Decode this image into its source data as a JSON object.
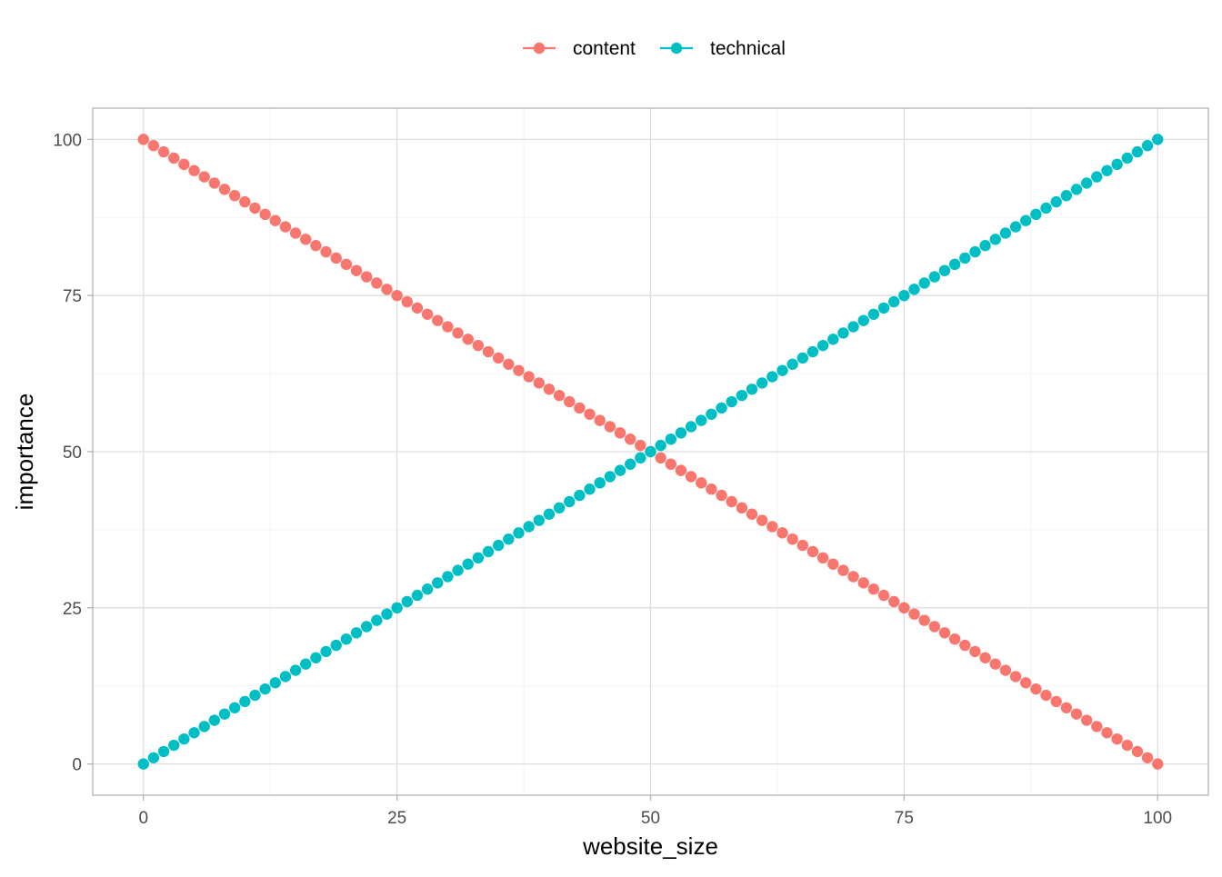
{
  "chart_data": {
    "type": "scatter",
    "title": "",
    "xlabel": "website_size",
    "ylabel": "importance",
    "xlim": [
      -5,
      105
    ],
    "ylim": [
      -5,
      105
    ],
    "x_ticks": [
      0,
      25,
      50,
      75,
      100
    ],
    "y_ticks": [
      0,
      25,
      50,
      75,
      100
    ],
    "x_tick_labels": [
      "0",
      "25",
      "50",
      "75",
      "100"
    ],
    "y_tick_labels": [
      "0",
      "25",
      "50",
      "75",
      "100"
    ],
    "grid": true,
    "legend_position": "top",
    "x": [
      0,
      1,
      2,
      3,
      4,
      5,
      6,
      7,
      8,
      9,
      10,
      11,
      12,
      13,
      14,
      15,
      16,
      17,
      18,
      19,
      20,
      21,
      22,
      23,
      24,
      25,
      26,
      27,
      28,
      29,
      30,
      31,
      32,
      33,
      34,
      35,
      36,
      37,
      38,
      39,
      40,
      41,
      42,
      43,
      44,
      45,
      46,
      47,
      48,
      49,
      50,
      51,
      52,
      53,
      54,
      55,
      56,
      57,
      58,
      59,
      60,
      61,
      62,
      63,
      64,
      65,
      66,
      67,
      68,
      69,
      70,
      71,
      72,
      73,
      74,
      75,
      76,
      77,
      78,
      79,
      80,
      81,
      82,
      83,
      84,
      85,
      86,
      87,
      88,
      89,
      90,
      91,
      92,
      93,
      94,
      95,
      96,
      97,
      98,
      99,
      100
    ],
    "series": [
      {
        "name": "content",
        "color": "#F8766D",
        "values": [
          100,
          99,
          98,
          97,
          96,
          95,
          94,
          93,
          92,
          91,
          90,
          89,
          88,
          87,
          86,
          85,
          84,
          83,
          82,
          81,
          80,
          79,
          78,
          77,
          76,
          75,
          74,
          73,
          72,
          71,
          70,
          69,
          68,
          67,
          66,
          65,
          64,
          63,
          62,
          61,
          60,
          59,
          58,
          57,
          56,
          55,
          54,
          53,
          52,
          51,
          50,
          49,
          48,
          47,
          46,
          45,
          44,
          43,
          42,
          41,
          40,
          39,
          38,
          37,
          36,
          35,
          34,
          33,
          32,
          31,
          30,
          29,
          28,
          27,
          26,
          25,
          24,
          23,
          22,
          21,
          20,
          19,
          18,
          17,
          16,
          15,
          14,
          13,
          12,
          11,
          10,
          9,
          8,
          7,
          6,
          5,
          4,
          3,
          2,
          1,
          0
        ]
      },
      {
        "name": "technical",
        "color": "#00BFC4",
        "values": [
          0,
          1,
          2,
          3,
          4,
          5,
          6,
          7,
          8,
          9,
          10,
          11,
          12,
          13,
          14,
          15,
          16,
          17,
          18,
          19,
          20,
          21,
          22,
          23,
          24,
          25,
          26,
          27,
          28,
          29,
          30,
          31,
          32,
          33,
          34,
          35,
          36,
          37,
          38,
          39,
          40,
          41,
          42,
          43,
          44,
          45,
          46,
          47,
          48,
          49,
          50,
          51,
          52,
          53,
          54,
          55,
          56,
          57,
          58,
          59,
          60,
          61,
          62,
          63,
          64,
          65,
          66,
          67,
          68,
          69,
          70,
          71,
          72,
          73,
          74,
          75,
          76,
          77,
          78,
          79,
          80,
          81,
          82,
          83,
          84,
          85,
          86,
          87,
          88,
          89,
          90,
          91,
          92,
          93,
          94,
          95,
          96,
          97,
          98,
          99,
          100
        ]
      }
    ]
  }
}
